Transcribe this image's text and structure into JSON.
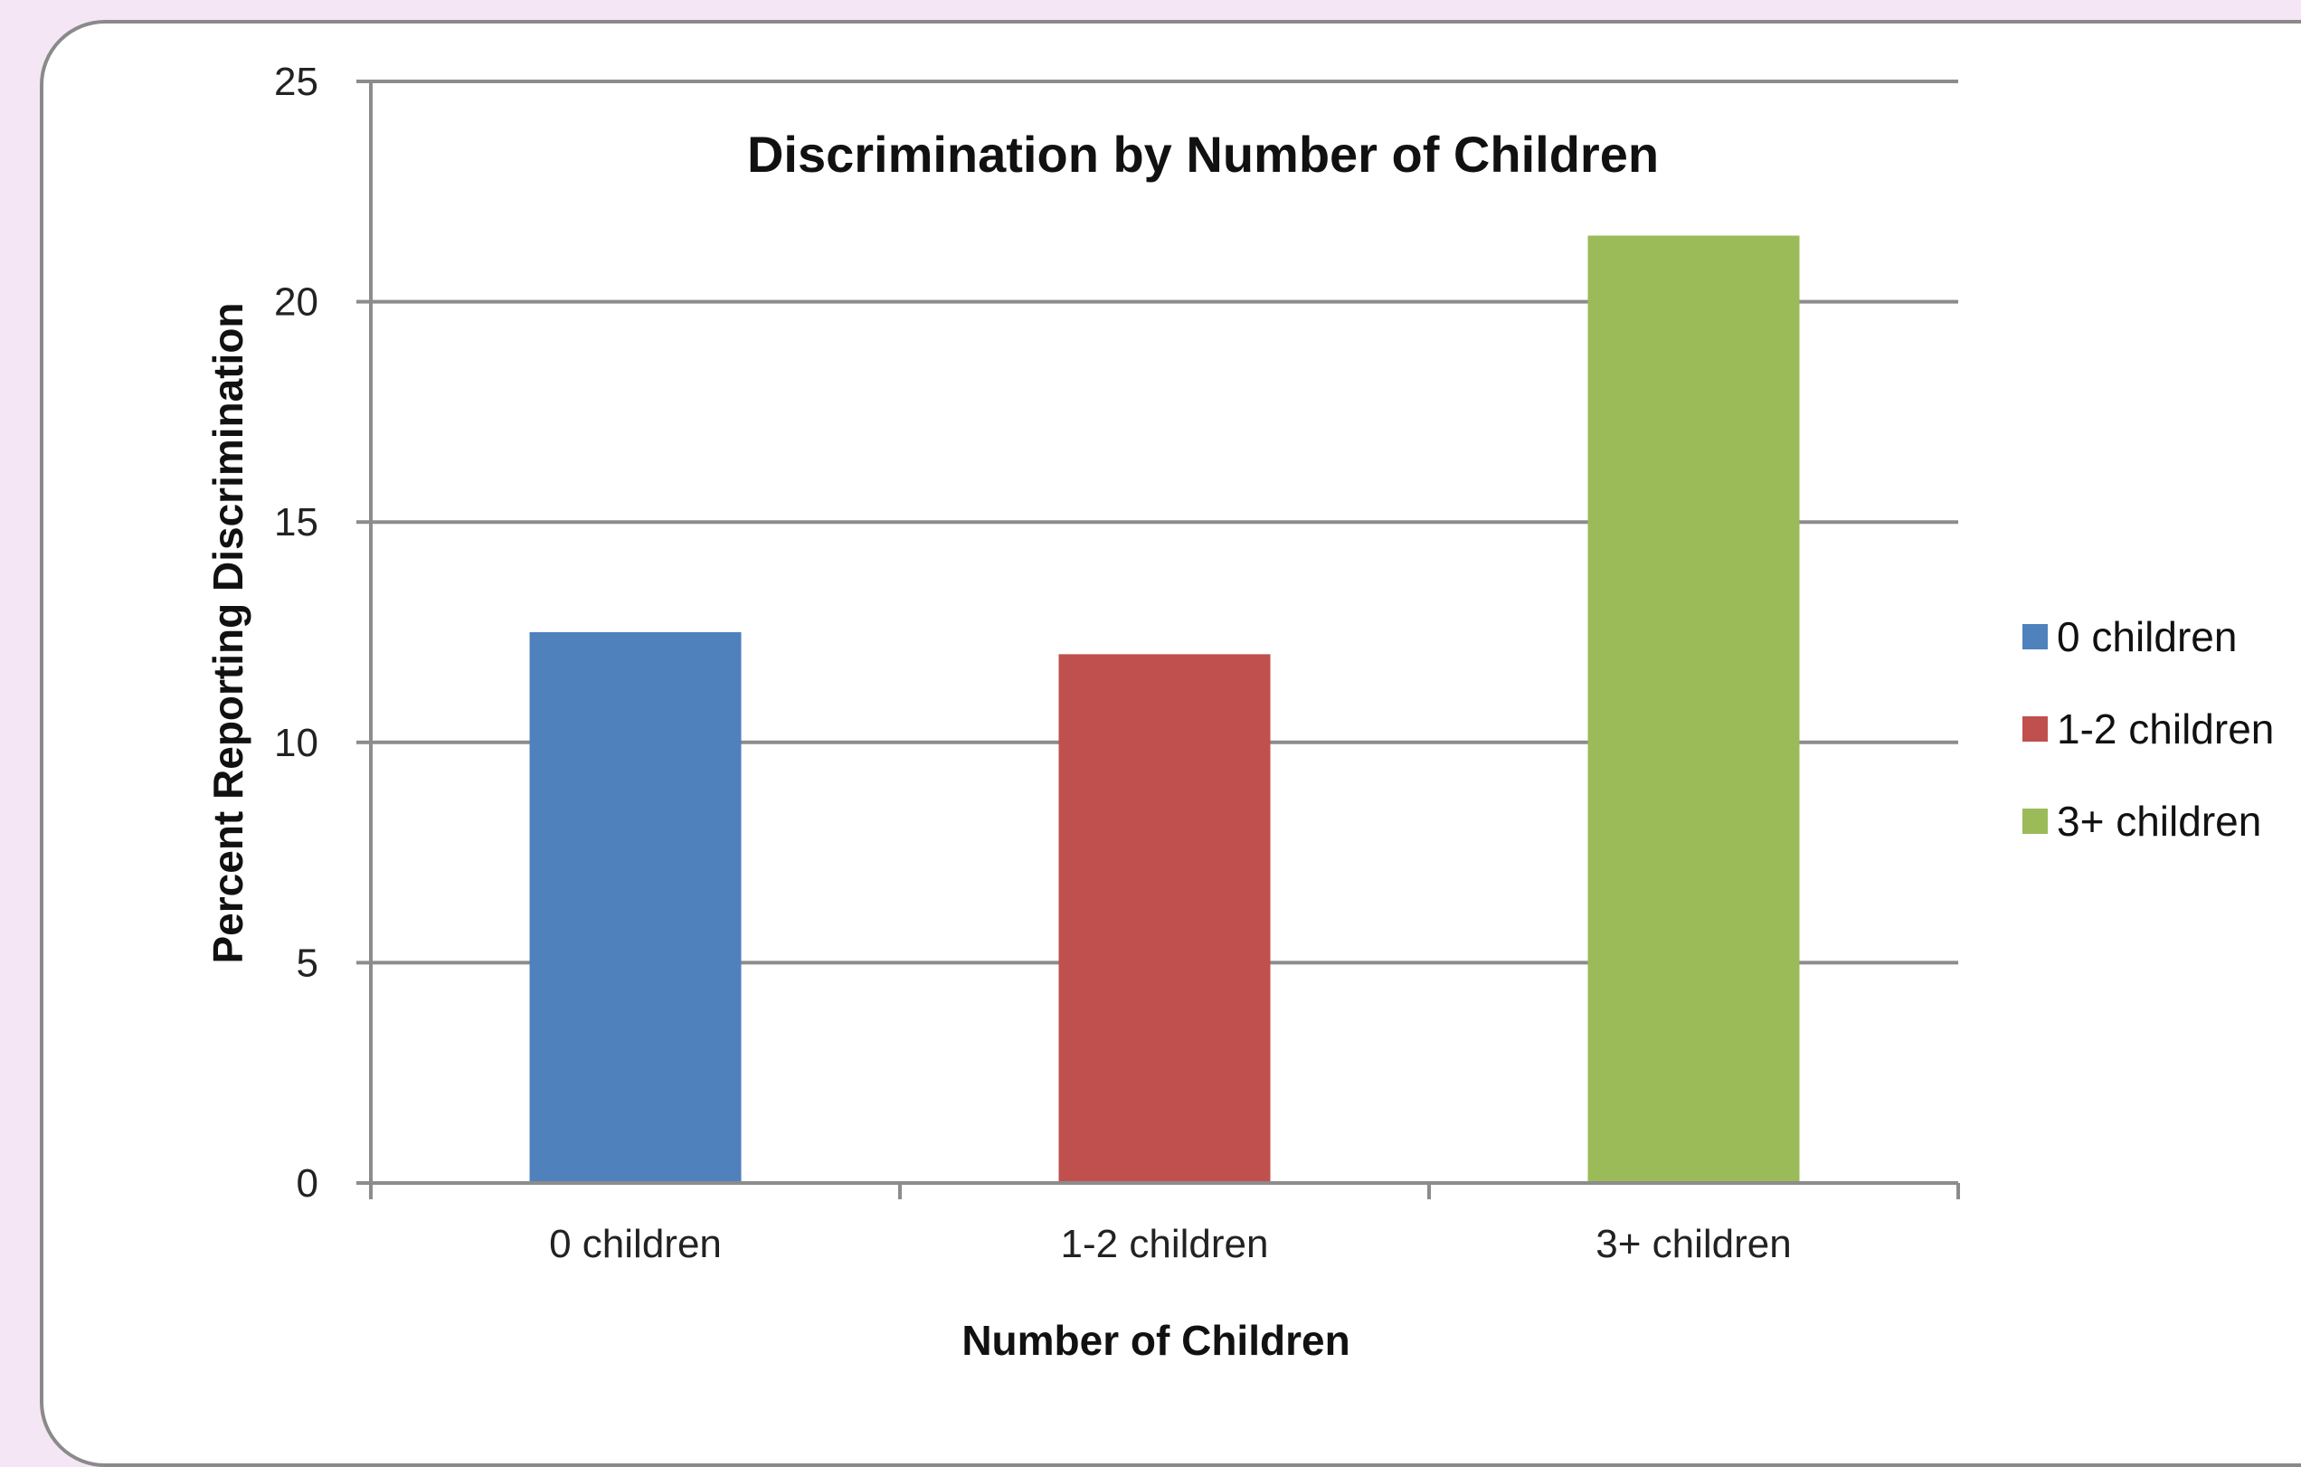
{
  "chart_data": {
    "type": "bar",
    "title": "Discrimination by Number of Children",
    "xlabel": "Number of Children",
    "ylabel": "Percent Reporting Discrimination",
    "categories": [
      "0 children",
      "1-2 children",
      "3+ children"
    ],
    "values": [
      12.5,
      12.0,
      21.5
    ],
    "colors": [
      "#4f81bd",
      "#c0504d",
      "#9bbb59"
    ],
    "ylim": [
      0,
      25
    ],
    "yticks": [
      0,
      5,
      10,
      15,
      20,
      25
    ],
    "grid": true,
    "legend": {
      "placement": "right",
      "entries": [
        "0 children",
        "1-2 children",
        "3+ children"
      ]
    }
  }
}
